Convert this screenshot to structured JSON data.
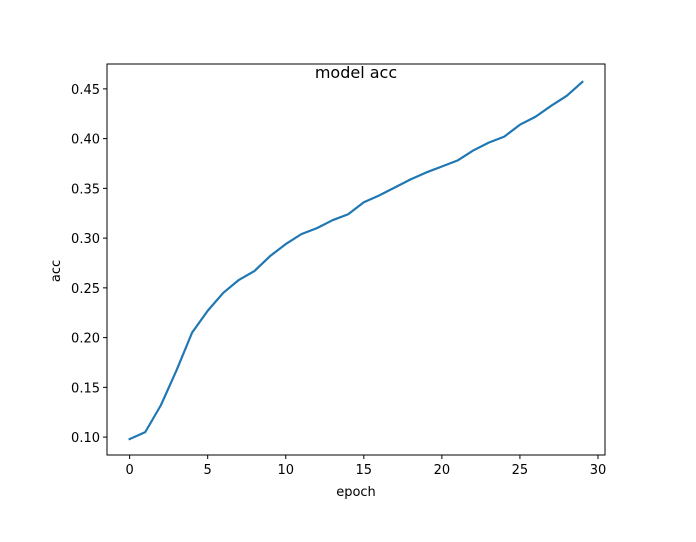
{
  "chart_data": {
    "type": "line",
    "title": "model acc",
    "xlabel": "epoch",
    "ylabel": "acc",
    "xlim": [
      -1.45,
      30.45
    ],
    "ylim": [
      0.082,
      0.475
    ],
    "xticks": [
      0,
      5,
      10,
      15,
      20,
      25,
      30
    ],
    "yticks": [
      0.1,
      0.15,
      0.2,
      0.25,
      0.3,
      0.35,
      0.4,
      0.45
    ],
    "ytick_labels": [
      "0.10",
      "0.15",
      "0.20",
      "0.25",
      "0.30",
      "0.35",
      "0.40",
      "0.45"
    ],
    "grid": false,
    "legend": "none",
    "series": [
      {
        "color": "#1f77b4",
        "x": [
          0,
          1,
          2,
          3,
          4,
          5,
          6,
          7,
          8,
          9,
          10,
          11,
          12,
          13,
          14,
          15,
          16,
          17,
          18,
          19,
          20,
          21,
          22,
          23,
          24,
          25,
          26,
          27,
          28,
          29
        ],
        "values": [
          0.098,
          0.105,
          0.132,
          0.167,
          0.205,
          0.227,
          0.245,
          0.258,
          0.267,
          0.282,
          0.294,
          0.304,
          0.31,
          0.318,
          0.324,
          0.336,
          0.343,
          0.351,
          0.359,
          0.366,
          0.372,
          0.378,
          0.388,
          0.396,
          0.402,
          0.414,
          0.422,
          0.433,
          0.443,
          0.457
        ]
      }
    ]
  }
}
